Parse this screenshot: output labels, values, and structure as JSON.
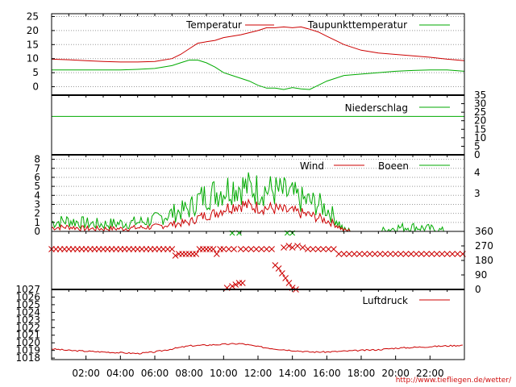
{
  "credit": "http://www.tiefliegen.de/wetter/",
  "x_ticks": [
    "02:00",
    "04:00",
    "06:00",
    "08:00",
    "10:00",
    "12:00",
    "14:00",
    "16:00",
    "18:00",
    "20:00",
    "22:00"
  ],
  "x_tick_hours": [
    2,
    4,
    6,
    8,
    10,
    12,
    14,
    16,
    18,
    20,
    22
  ],
  "colors": {
    "red": "#cc0000",
    "green": "#00aa00",
    "grid": "#999999"
  },
  "chart_data": [
    {
      "type": "line",
      "name": "temperature",
      "ylim": [
        -3,
        26
      ],
      "y_ticks": [
        0,
        5,
        10,
        15,
        20,
        25
      ],
      "x_unit": "hour of day",
      "legend": "top-right",
      "series": [
        {
          "name": "Temperatur",
          "color": "#cc0000",
          "x": [
            0,
            1,
            2,
            3,
            4,
            5,
            6,
            7,
            7.5,
            8,
            8.5,
            9,
            9.5,
            10,
            11,
            12,
            12.5,
            13,
            13.5,
            14,
            14.5,
            15,
            15.5,
            16,
            16.5,
            17,
            18,
            19,
            20,
            21,
            22,
            23,
            24
          ],
          "y": [
            9.8,
            9.6,
            9.3,
            9.0,
            8.8,
            8.8,
            9.0,
            10.0,
            11.5,
            13.5,
            15.5,
            16.0,
            16.5,
            17.5,
            18.5,
            20.0,
            21.0,
            21.0,
            21.3,
            21.0,
            21.3,
            20.5,
            19.5,
            18.0,
            16.5,
            15.0,
            13.0,
            12.0,
            11.5,
            11.0,
            10.5,
            9.8,
            9.3
          ]
        },
        {
          "name": "Taupunkttemperatur",
          "color": "#00aa00",
          "x": [
            0,
            1,
            2,
            3,
            4,
            5,
            6,
            7,
            7.5,
            8,
            8.5,
            9,
            9.5,
            10,
            10.5,
            11,
            11.5,
            12,
            12.5,
            13,
            13.5,
            14,
            14.5,
            15,
            15.5,
            16,
            16.5,
            17,
            18,
            19,
            20,
            21,
            22,
            23,
            24
          ],
          "y": [
            6.0,
            6.0,
            6.0,
            6.0,
            6.0,
            6.2,
            6.5,
            7.5,
            8.5,
            9.5,
            9.5,
            8.5,
            7.0,
            5.0,
            4.0,
            3.0,
            2.0,
            0.5,
            -0.5,
            -0.5,
            -1.0,
            -0.3,
            -0.8,
            -1.0,
            0.5,
            2.0,
            3.0,
            4.0,
            4.5,
            5.0,
            5.5,
            5.8,
            6.0,
            6.0,
            5.5
          ]
        }
      ]
    },
    {
      "type": "line",
      "name": "precipitation",
      "ylim": [
        0,
        35
      ],
      "y_ticks": [
        0,
        5,
        10,
        15,
        20,
        25,
        30,
        35
      ],
      "y_axis_side": "right",
      "series": [
        {
          "name": "Niederschlag",
          "color": "#00aa00",
          "x": [
            0,
            24
          ],
          "y": [
            22.5,
            22.5
          ]
        }
      ]
    },
    {
      "type": "line",
      "name": "wind",
      "ylim": [
        0,
        8
      ],
      "y_ticks": [
        0,
        1,
        2,
        3,
        4,
        5,
        6,
        7,
        8
      ],
      "right_axis_labels": [
        "4",
        "3"
      ],
      "series": [
        {
          "name": "Wind",
          "color": "#cc0000",
          "x": [
            0,
            1,
            2,
            3,
            4,
            5,
            6,
            7,
            8,
            8.5,
            9,
            9.5,
            10,
            10.5,
            11,
            11.5,
            12,
            12.5,
            13,
            13.5,
            14,
            14.5,
            15,
            15.5,
            16,
            16.5,
            17,
            18,
            19,
            20,
            21,
            22,
            23,
            24
          ],
          "y": [
            0.4,
            0.5,
            0.3,
            0.3,
            0.3,
            0.4,
            0.5,
            0.8,
            1.0,
            1.5,
            1.8,
            2.0,
            2.5,
            2.8,
            3.0,
            2.8,
            2.7,
            2.6,
            2.5,
            2.3,
            2.2,
            2.0,
            1.8,
            1.5,
            1.2,
            0.8,
            0.1,
            0,
            0,
            0,
            0,
            0,
            0,
            0
          ]
        },
        {
          "name": "Boeen",
          "color": "#00aa00",
          "x": [
            0,
            1,
            2,
            3,
            4,
            5,
            6,
            7,
            8,
            8.5,
            9,
            9.5,
            10,
            10.5,
            11,
            11.5,
            12,
            12.5,
            13,
            13.5,
            14,
            14.5,
            15,
            15.5,
            16,
            16.5,
            17,
            18,
            19,
            20,
            21,
            22,
            23,
            24
          ],
          "y": [
            1.0,
            1.2,
            0.9,
            0.8,
            0.9,
            1.0,
            1.3,
            2.0,
            2.5,
            3.5,
            4.0,
            4.3,
            4.6,
            5.0,
            5.0,
            4.8,
            4.7,
            4.6,
            4.5,
            4.3,
            4.0,
            3.5,
            3.3,
            3.0,
            2.5,
            1.5,
            0.1,
            0,
            0,
            0.4,
            0.5,
            0.3,
            0,
            0
          ]
        }
      ]
    },
    {
      "type": "scatter",
      "name": "wind-direction",
      "ylim": [
        0,
        360
      ],
      "y_ticks": [
        0,
        90,
        180,
        270,
        360
      ],
      "y_axis_side": "right",
      "series": [
        {
          "name": "wind-direction",
          "color": "#cc0000",
          "x": [
            0,
            0.25,
            0.5,
            0.75,
            1,
            1.25,
            1.5,
            1.75,
            2,
            2.25,
            2.5,
            2.75,
            3,
            3.25,
            3.5,
            3.75,
            4,
            4.25,
            4.5,
            4.75,
            5,
            5.25,
            5.5,
            5.75,
            6,
            6.25,
            6.5,
            6.75,
            7,
            7.2,
            7.4,
            7.6,
            7.8,
            8,
            8.2,
            8.4,
            8.6,
            8.8,
            9,
            9.2,
            9.4,
            9.6,
            9.8,
            10,
            10.3,
            10.6,
            11,
            11.3,
            11.6,
            11.9,
            12.2,
            12.5,
            12.8,
            13.5,
            13.8,
            14,
            14.3,
            14.6,
            14.9,
            15.2,
            15.5,
            15.8,
            16.1,
            16.4,
            16.7,
            17,
            17.3,
            17.6,
            17.9,
            18.2,
            18.5,
            18.8,
            19.1,
            19.4,
            19.7,
            20,
            20.3,
            20.6,
            20.9,
            21.2,
            21.5,
            21.8,
            22.1,
            22.4,
            22.7,
            23,
            23.3,
            23.6,
            23.9,
            10.2,
            10.5,
            10.7,
            10.9,
            11.1,
            13,
            13.2,
            13.4,
            13.6,
            13.8,
            14,
            14.2
          ],
          "y": [
            250,
            250,
            250,
            250,
            250,
            250,
            250,
            250,
            250,
            250,
            250,
            250,
            250,
            250,
            250,
            250,
            250,
            250,
            250,
            250,
            250,
            250,
            250,
            250,
            250,
            250,
            250,
            250,
            250,
            210,
            220,
            220,
            220,
            220,
            220,
            220,
            250,
            250,
            250,
            250,
            250,
            220,
            250,
            250,
            250,
            250,
            250,
            250,
            250,
            250,
            250,
            250,
            250,
            260,
            270,
            260,
            270,
            260,
            250,
            250,
            250,
            250,
            250,
            250,
            220,
            220,
            220,
            220,
            220,
            220,
            220,
            220,
            220,
            220,
            220,
            220,
            220,
            220,
            220,
            220,
            220,
            220,
            220,
            220,
            220,
            220,
            220,
            220,
            220,
            10,
            20,
            30,
            40,
            40,
            150,
            130,
            100,
            70,
            40,
            10,
            0
          ]
        }
      ]
    },
    {
      "type": "line",
      "name": "pressure",
      "ylim": [
        1018,
        1027
      ],
      "y_ticks": [
        1018,
        1019,
        1020,
        1021,
        1022,
        1023,
        1024,
        1025,
        1026,
        1027
      ],
      "legend": "top-right",
      "series": [
        {
          "name": "Luftdruck",
          "color": "#cc0000",
          "x": [
            0,
            1,
            2,
            3,
            4,
            5,
            6,
            7,
            8,
            9,
            10,
            11,
            12,
            13,
            14,
            15,
            16,
            17,
            18,
            19,
            20,
            21,
            22,
            23,
            24
          ],
          "y": [
            1019.2,
            1019.0,
            1018.9,
            1018.8,
            1018.7,
            1018.6,
            1018.8,
            1019.2,
            1019.6,
            1019.7,
            1019.8,
            1019.9,
            1019.5,
            1019.2,
            1019.0,
            1018.8,
            1018.8,
            1018.9,
            1019.0,
            1019.1,
            1019.3,
            1019.4,
            1019.5,
            1019.6,
            1019.7
          ]
        }
      ]
    }
  ],
  "legends": {
    "temperature": [
      "Temperatur",
      "Taupunkttemperatur"
    ],
    "precipitation": [
      "Niederschlag"
    ],
    "wind": [
      "Wind",
      "Boeen"
    ],
    "pressure": [
      "Luftdruck"
    ]
  }
}
